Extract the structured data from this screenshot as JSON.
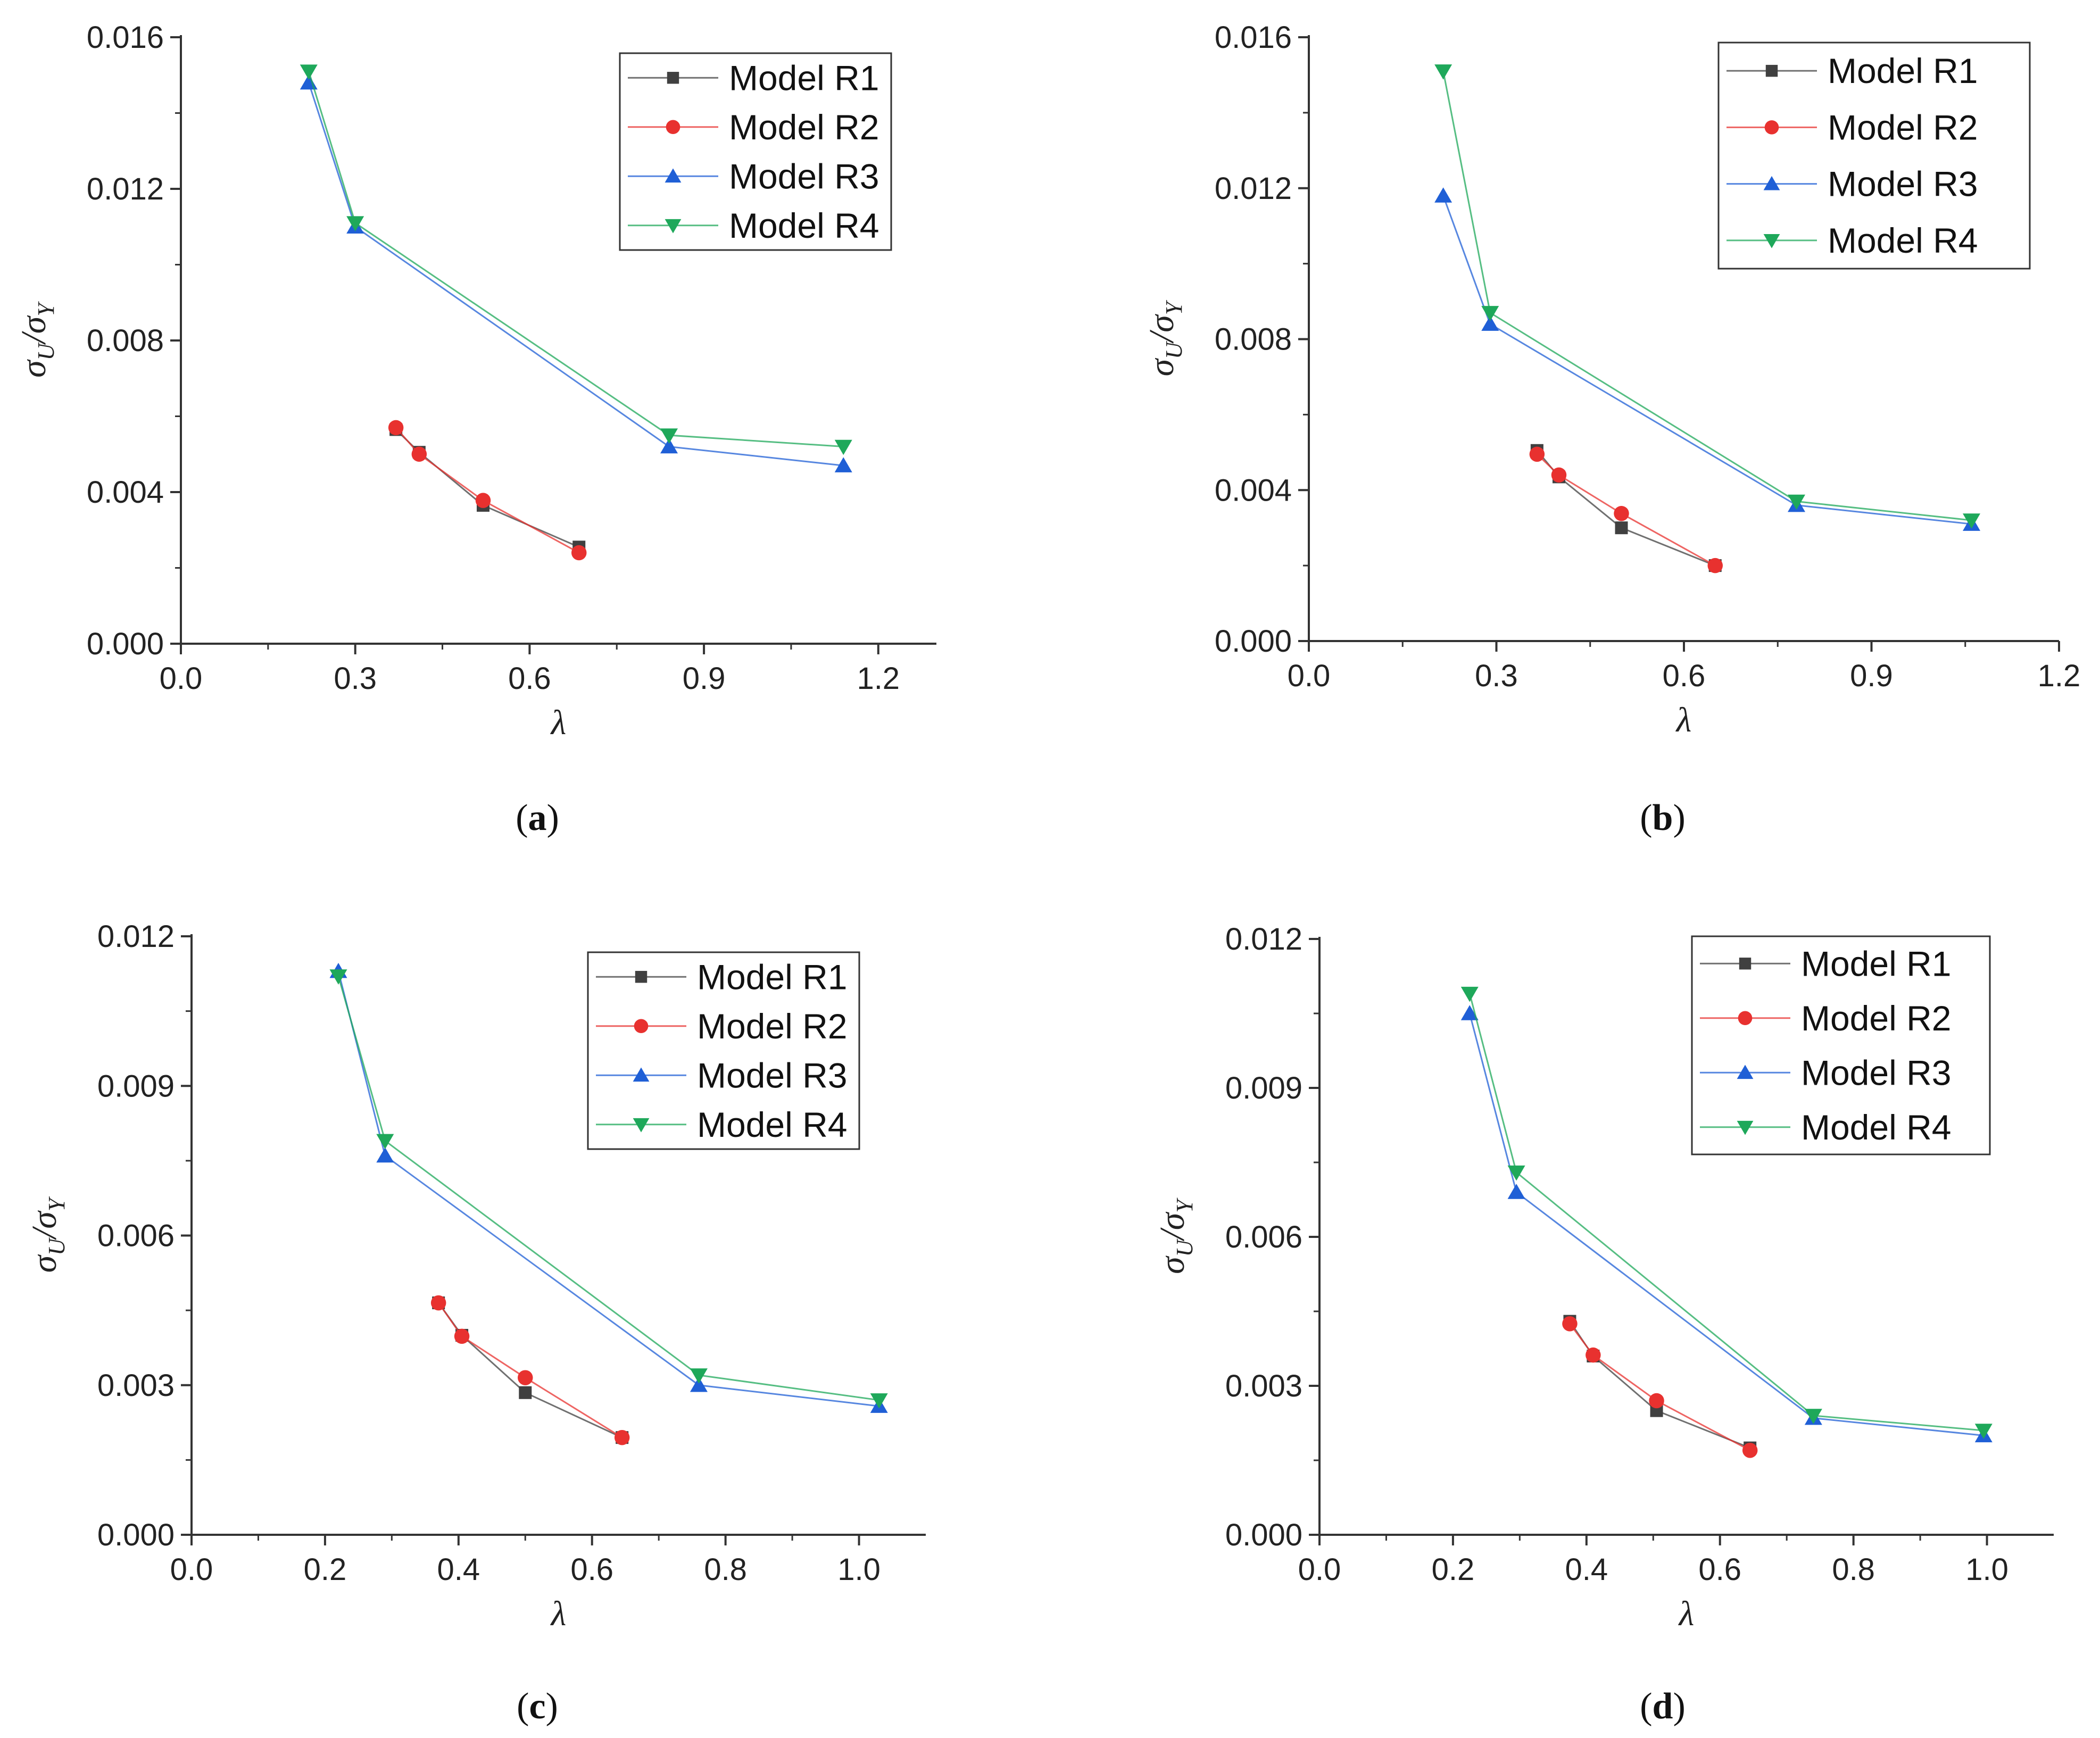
{
  "figure": {
    "captions": [
      "(a)",
      "(b)",
      "(c)",
      "(d)"
    ]
  },
  "colors": {
    "R1": "#404040",
    "R2": "#e8312f",
    "R3": "#1f5fd6",
    "R4": "#1ea85a",
    "axis": "#333333"
  },
  "chart_data": [
    {
      "type": "line",
      "panel": "(a)",
      "xlabel": "λ",
      "ylabel": "σU/σY",
      "ylabel_parts": {
        "base": "σ",
        "sub1": "U",
        "slash": "/",
        "sub2": "Y"
      },
      "xlim": [
        0,
        1.3
      ],
      "ylim": [
        0,
        0.016
      ],
      "xticks": [
        0.0,
        0.3,
        0.6,
        0.9,
        1.2
      ],
      "xtick_labels": [
        "0.0",
        "0.3",
        "0.6",
        "0.9",
        "1.2"
      ],
      "yticks": [
        0,
        0.004,
        0.008,
        0.012,
        0.016
      ],
      "ytick_labels": [
        "0.000",
        "0.004",
        "0.008",
        "0.012",
        "0.016"
      ],
      "legend": "top-right",
      "series": [
        {
          "name": "Model R1",
          "marker": "square",
          "x": [
            0.37,
            0.41,
            0.52,
            0.685
          ],
          "y": [
            0.00565,
            0.00505,
            0.00365,
            0.00255
          ]
        },
        {
          "name": "Model R2",
          "marker": "circle",
          "x": [
            0.37,
            0.41,
            0.52,
            0.685
          ],
          "y": [
            0.0057,
            0.005,
            0.00378,
            0.0024
          ]
        },
        {
          "name": "Model R3",
          "marker": "triangle-up",
          "x": [
            0.22,
            0.3,
            0.84,
            1.14
          ],
          "y": [
            0.0148,
            0.011,
            0.0052,
            0.0047
          ]
        },
        {
          "name": "Model R4",
          "marker": "triangle-down",
          "x": [
            0.22,
            0.3,
            0.84,
            1.14
          ],
          "y": [
            0.0151,
            0.0111,
            0.0055,
            0.0052
          ]
        }
      ]
    },
    {
      "type": "line",
      "panel": "(b)",
      "xlabel": "λ",
      "ylabel": "σU/σY",
      "ylabel_parts": {
        "base": "σ",
        "sub1": "U",
        "slash": "/",
        "sub2": "Y"
      },
      "xlim": [
        0,
        1.2
      ],
      "ylim": [
        0,
        0.016
      ],
      "xticks": [
        0.0,
        0.3,
        0.6,
        0.9,
        1.2
      ],
      "xtick_labels": [
        "0.0",
        "0.3",
        "0.6",
        "0.9",
        "1.2"
      ],
      "yticks": [
        0,
        0.004,
        0.008,
        0.012,
        0.016
      ],
      "ytick_labels": [
        "0.000",
        "0.004",
        "0.008",
        "0.012",
        "0.016"
      ],
      "legend": "top-right",
      "series": [
        {
          "name": "Model R1",
          "marker": "square",
          "x": [
            0.365,
            0.4,
            0.5,
            0.65
          ],
          "y": [
            0.00505,
            0.00435,
            0.003,
            0.002
          ]
        },
        {
          "name": "Model R2",
          "marker": "circle",
          "x": [
            0.365,
            0.4,
            0.5,
            0.65
          ],
          "y": [
            0.00495,
            0.0044,
            0.00338,
            0.002
          ]
        },
        {
          "name": "Model R3",
          "marker": "triangle-up",
          "x": [
            0.215,
            0.29,
            0.78,
            1.06
          ],
          "y": [
            0.0118,
            0.0084,
            0.0036,
            0.0031
          ]
        },
        {
          "name": "Model R4",
          "marker": "triangle-down",
          "x": [
            0.215,
            0.29,
            0.78,
            1.06
          ],
          "y": [
            0.0151,
            0.0087,
            0.0037,
            0.0032
          ]
        }
      ]
    },
    {
      "type": "line",
      "panel": "(c)",
      "xlabel": "λ",
      "ylabel": "σU/σY",
      "ylabel_parts": {
        "base": "σ",
        "sub1": "U",
        "slash": "/",
        "sub2": "Y"
      },
      "xlim": [
        0,
        1.1
      ],
      "ylim": [
        0,
        0.012
      ],
      "xticks": [
        0.0,
        0.2,
        0.4,
        0.6,
        0.8,
        1.0
      ],
      "xtick_labels": [
        "0.0",
        "0.2",
        "0.4",
        "0.6",
        "0.8",
        "1.0"
      ],
      "yticks": [
        0,
        0.003,
        0.006,
        0.009,
        0.012
      ],
      "ytick_labels": [
        "0.000",
        "0.003",
        "0.006",
        "0.009",
        "0.012"
      ],
      "legend": "top-right",
      "series": [
        {
          "name": "Model R1",
          "marker": "square",
          "x": [
            0.37,
            0.405,
            0.5,
            0.645
          ],
          "y": [
            0.00465,
            0.004,
            0.00285,
            0.00195
          ]
        },
        {
          "name": "Model R2",
          "marker": "circle",
          "x": [
            0.37,
            0.405,
            0.5,
            0.645
          ],
          "y": [
            0.00465,
            0.00398,
            0.00315,
            0.00195
          ]
        },
        {
          "name": "Model R3",
          "marker": "triangle-up",
          "x": [
            0.22,
            0.29,
            0.76,
            1.03
          ],
          "y": [
            0.0113,
            0.0076,
            0.003,
            0.00258
          ]
        },
        {
          "name": "Model R4",
          "marker": "triangle-down",
          "x": [
            0.22,
            0.29,
            0.76,
            1.03
          ],
          "y": [
            0.0112,
            0.0079,
            0.0032,
            0.0027
          ]
        }
      ]
    },
    {
      "type": "line",
      "panel": "(d)",
      "xlabel": "λ",
      "ylabel": "σU/σY",
      "ylabel_parts": {
        "base": "σ",
        "sub1": "U",
        "slash": "/",
        "sub2": "Y"
      },
      "xlim": [
        0,
        1.1
      ],
      "ylim": [
        0,
        0.012
      ],
      "xticks": [
        0.0,
        0.2,
        0.4,
        0.6,
        0.8,
        1.0
      ],
      "xtick_labels": [
        "0.0",
        "0.2",
        "0.4",
        "0.6",
        "0.8",
        "1.0"
      ],
      "yticks": [
        0,
        0.003,
        0.006,
        0.009,
        0.012
      ],
      "ytick_labels": [
        "0.000",
        "0.003",
        "0.006",
        "0.009",
        "0.012"
      ],
      "legend": "top-right",
      "series": [
        {
          "name": "Model R1",
          "marker": "square",
          "x": [
            0.375,
            0.41,
            0.505,
            0.645
          ],
          "y": [
            0.0043,
            0.0036,
            0.0025,
            0.00175
          ]
        },
        {
          "name": "Model R2",
          "marker": "circle",
          "x": [
            0.375,
            0.41,
            0.505,
            0.645
          ],
          "y": [
            0.00425,
            0.00362,
            0.0027,
            0.0017
          ]
        },
        {
          "name": "Model R3",
          "marker": "triangle-up",
          "x": [
            0.225,
            0.295,
            0.74,
            0.995
          ],
          "y": [
            0.0105,
            0.0069,
            0.00235,
            0.002
          ]
        },
        {
          "name": "Model R4",
          "marker": "triangle-down",
          "x": [
            0.225,
            0.295,
            0.74,
            0.995
          ],
          "y": [
            0.0109,
            0.0073,
            0.0024,
            0.0021
          ]
        }
      ]
    }
  ]
}
